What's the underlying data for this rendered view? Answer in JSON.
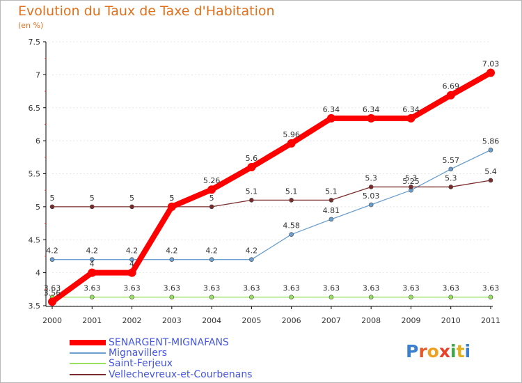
{
  "title": "Evolution du Taux de Taxe d'Habitation",
  "subtitle": "(en %)",
  "logo": {
    "text": "Proxiti",
    "letter_colors": [
      "#3a7fd0",
      "#e65a2a",
      "#f0a020",
      "#e8412a",
      "#3aa845",
      "#e0b020",
      "#3a7fd0"
    ]
  },
  "chart_data": {
    "type": "line",
    "categories": [
      "2000",
      "2001",
      "2002",
      "2003",
      "2004",
      "2005",
      "2006",
      "2007",
      "2008",
      "2009",
      "2010",
      "2011"
    ],
    "ylim": [
      3.5,
      7.5
    ],
    "yticks": [
      "3.5",
      "4",
      "4.5",
      "5",
      "5.5",
      "6",
      "6.5",
      "7",
      "7.5"
    ],
    "grid": "horizontal dotted",
    "legend_position": "bottom-left",
    "series": [
      {
        "name": "SENARGENT-MIGNAFANS",
        "color": "#ff0000",
        "values": [
          3.56,
          4,
          4,
          5,
          5.26,
          5.6,
          5.96,
          6.34,
          6.34,
          6.34,
          6.69,
          7.03
        ],
        "labels": [
          "3.56",
          "4",
          "4",
          "5",
          "5.26",
          "5.6",
          "5.96",
          "6.34",
          "6.34",
          "6.34",
          "6.69",
          "7.03"
        ]
      },
      {
        "name": "Mignavillers",
        "color": "#6a9fd0",
        "values": [
          4.2,
          4.2,
          4.2,
          4.2,
          4.2,
          4.2,
          4.58,
          4.81,
          5.03,
          5.25,
          5.57,
          5.86
        ],
        "labels": [
          "4.2",
          "4.2",
          "4.2",
          "4.2",
          "4.2",
          "4.2",
          "4.58",
          "4.81",
          "5.03",
          "5.25",
          "5.57",
          "5.86"
        ]
      },
      {
        "name": "Saint-Ferjeux",
        "color": "#99e060",
        "values": [
          3.63,
          3.63,
          3.63,
          3.63,
          3.63,
          3.63,
          3.63,
          3.63,
          3.63,
          3.63,
          3.63,
          3.63
        ],
        "labels": [
          "3.63",
          "3.63",
          "3.63",
          "3.63",
          "3.63",
          "3.63",
          "3.63",
          "3.63",
          "3.63",
          "3.63",
          "3.63",
          "3.63"
        ]
      },
      {
        "name": "Vellechevreux-et-Courbenans",
        "color": "#7a2c2c",
        "values": [
          5,
          5,
          5,
          5,
          5,
          5.1,
          5.1,
          5.1,
          5.3,
          5.3,
          5.3,
          5.4
        ],
        "labels": [
          "5",
          "5",
          "5",
          "5",
          "5",
          "5.1",
          "5.1",
          "5.1",
          "5.3",
          "5.3",
          "5.3",
          "5.4"
        ]
      }
    ]
  }
}
